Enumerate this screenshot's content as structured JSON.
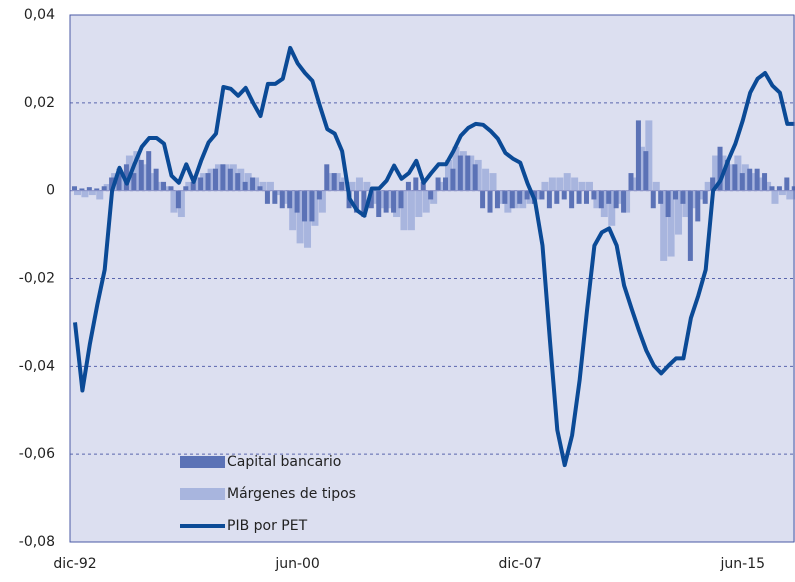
{
  "chart_data": {
    "type": "combo",
    "categories": [
      "dic-92",
      null,
      null,
      null,
      null,
      null,
      null,
      null,
      null,
      null,
      null,
      null,
      null,
      null,
      null,
      null,
      null,
      null,
      null,
      null,
      null,
      null,
      null,
      null,
      null,
      null,
      null,
      null,
      null,
      null,
      "jun-00",
      null,
      null,
      null,
      null,
      null,
      null,
      null,
      null,
      null,
      null,
      null,
      null,
      null,
      null,
      null,
      null,
      null,
      null,
      null,
      null,
      null,
      null,
      null,
      null,
      null,
      null,
      null,
      null,
      null,
      "dic-07",
      null,
      null,
      null,
      null,
      null,
      null,
      null,
      null,
      null,
      null,
      null,
      null,
      null,
      null,
      null,
      null,
      null,
      null,
      null,
      null,
      null,
      null,
      null,
      null,
      null,
      null,
      null,
      null,
      null,
      "jun-15",
      null,
      null,
      null,
      null,
      null,
      null,
      null
    ],
    "series": [
      {
        "name": "Capital bancario",
        "type": "bar",
        "color": "#5b72b6",
        "values": [
          0.001,
          0.0005,
          0.0008,
          0.0005,
          0.001,
          0.003,
          0.005,
          0.006,
          0.004,
          0.007,
          0.009,
          0.005,
          0.002,
          0.001,
          -0.004,
          0.001,
          0.002,
          0.003,
          0.004,
          0.005,
          0.006,
          0.005,
          0.004,
          0.002,
          0.003,
          0.001,
          -0.003,
          -0.003,
          -0.004,
          -0.004,
          -0.005,
          -0.007,
          -0.007,
          -0.002,
          0.006,
          0.004,
          0.002,
          -0.004,
          -0.005,
          -0.006,
          -0.004,
          -0.006,
          -0.005,
          -0.005,
          -0.004,
          0.002,
          0.003,
          0.002,
          -0.002,
          0.003,
          0.003,
          0.005,
          0.008,
          0.008,
          0.006,
          -0.004,
          -0.005,
          -0.004,
          -0.003,
          -0.004,
          -0.003,
          -0.002,
          -0.003,
          -0.002,
          -0.004,
          -0.003,
          -0.002,
          -0.004,
          -0.003,
          -0.003,
          -0.002,
          -0.004,
          -0.003,
          -0.004,
          -0.005,
          0.004,
          0.016,
          0.009,
          -0.004,
          -0.003,
          -0.006,
          -0.002,
          -0.003,
          -0.016,
          -0.007,
          -0.003,
          0.003,
          0.01,
          0.007,
          0.006,
          0.004,
          0.005,
          0.005,
          0.004,
          0.001,
          0.001,
          0.003,
          0.001
        ]
      },
      {
        "name": "Márgenes de tipos",
        "type": "bar",
        "color": "#a8b5de",
        "values": [
          -0.001,
          -0.0015,
          -0.001,
          -0.002,
          0.0015,
          0.004,
          0.004,
          0.008,
          0.009,
          0.006,
          0.004,
          0.002,
          0.001,
          -0.005,
          -0.006,
          0.002,
          0.003,
          0.004,
          0.005,
          0.006,
          0.006,
          0.006,
          0.005,
          0.004,
          0.003,
          0.002,
          0.002,
          -0.001,
          -0.003,
          -0.009,
          -0.012,
          -0.013,
          -0.008,
          -0.005,
          0.004,
          0.004,
          0.003,
          0.002,
          0.003,
          0.002,
          -0.003,
          -0.004,
          -0.004,
          -0.006,
          -0.009,
          -0.009,
          -0.006,
          -0.005,
          -0.003,
          0.002,
          0.007,
          0.01,
          0.009,
          0.008,
          0.007,
          0.005,
          0.004,
          -0.003,
          -0.005,
          -0.004,
          -0.004,
          -0.003,
          -0.002,
          0.002,
          0.003,
          0.003,
          0.004,
          0.003,
          0.002,
          0.002,
          -0.004,
          -0.006,
          -0.008,
          -0.003,
          -0.005,
          0.003,
          0.01,
          0.016,
          0.002,
          -0.016,
          -0.015,
          -0.01,
          -0.006,
          -0.004,
          -0.002,
          0.002,
          0.008,
          0.008,
          0.006,
          0.008,
          0.006,
          0.004,
          0.003,
          0.002,
          -0.003,
          -0.001,
          -0.002,
          -0.002
        ]
      },
      {
        "name": "PIB por PET",
        "type": "line",
        "color": "#0b4a96",
        "values": [
          -0.03,
          -0.0455,
          -0.035,
          -0.026,
          -0.018,
          0.0,
          0.0052,
          0.0016,
          0.006,
          0.01,
          0.012,
          0.012,
          0.0107,
          0.0034,
          0.0018,
          0.006,
          0.002,
          0.0068,
          0.011,
          0.013,
          0.0236,
          0.0232,
          0.0216,
          0.0234,
          0.02,
          0.017,
          0.0243,
          0.0243,
          0.0255,
          0.0325,
          0.029,
          0.0268,
          0.025,
          0.0193,
          0.014,
          0.013,
          0.009,
          -0.0018,
          -0.0045,
          -0.0057,
          0.0005,
          0.0005,
          0.0023,
          0.0057,
          0.0027,
          0.004,
          0.0068,
          0.0018,
          0.004,
          0.006,
          0.006,
          0.009,
          0.0125,
          0.0143,
          0.0152,
          0.015,
          0.0136,
          0.0118,
          0.0086,
          0.0073,
          0.0064,
          0.0016,
          -0.0023,
          -0.0125,
          -0.034,
          -0.0545,
          -0.0625,
          -0.0557,
          -0.0432,
          -0.0273,
          -0.0125,
          -0.0095,
          -0.0086,
          -0.0125,
          -0.0216,
          -0.0268,
          -0.0318,
          -0.0364,
          -0.0398,
          -0.0416,
          -0.0398,
          -0.0382,
          -0.0382,
          -0.029,
          -0.0239,
          -0.018,
          0.0,
          0.0023,
          0.0068,
          0.0107,
          0.016,
          0.0223,
          0.0255,
          0.0268,
          0.0239,
          0.0223,
          0.0152,
          0.0152
        ]
      }
    ],
    "ylim": [
      -0.08,
      0.04
    ],
    "yticks": [
      {
        "value": -0.08,
        "label": "-0,08"
      },
      {
        "value": -0.06,
        "label": "-0,06"
      },
      {
        "value": -0.04,
        "label": "-0,04"
      },
      {
        "value": -0.02,
        "label": "-0,02"
      },
      0,
      {
        "value": 0.02,
        "label": "0,02"
      },
      {
        "value": 0.04,
        "label": "0,04"
      }
    ],
    "grid": true,
    "legend": "lower left"
  }
}
